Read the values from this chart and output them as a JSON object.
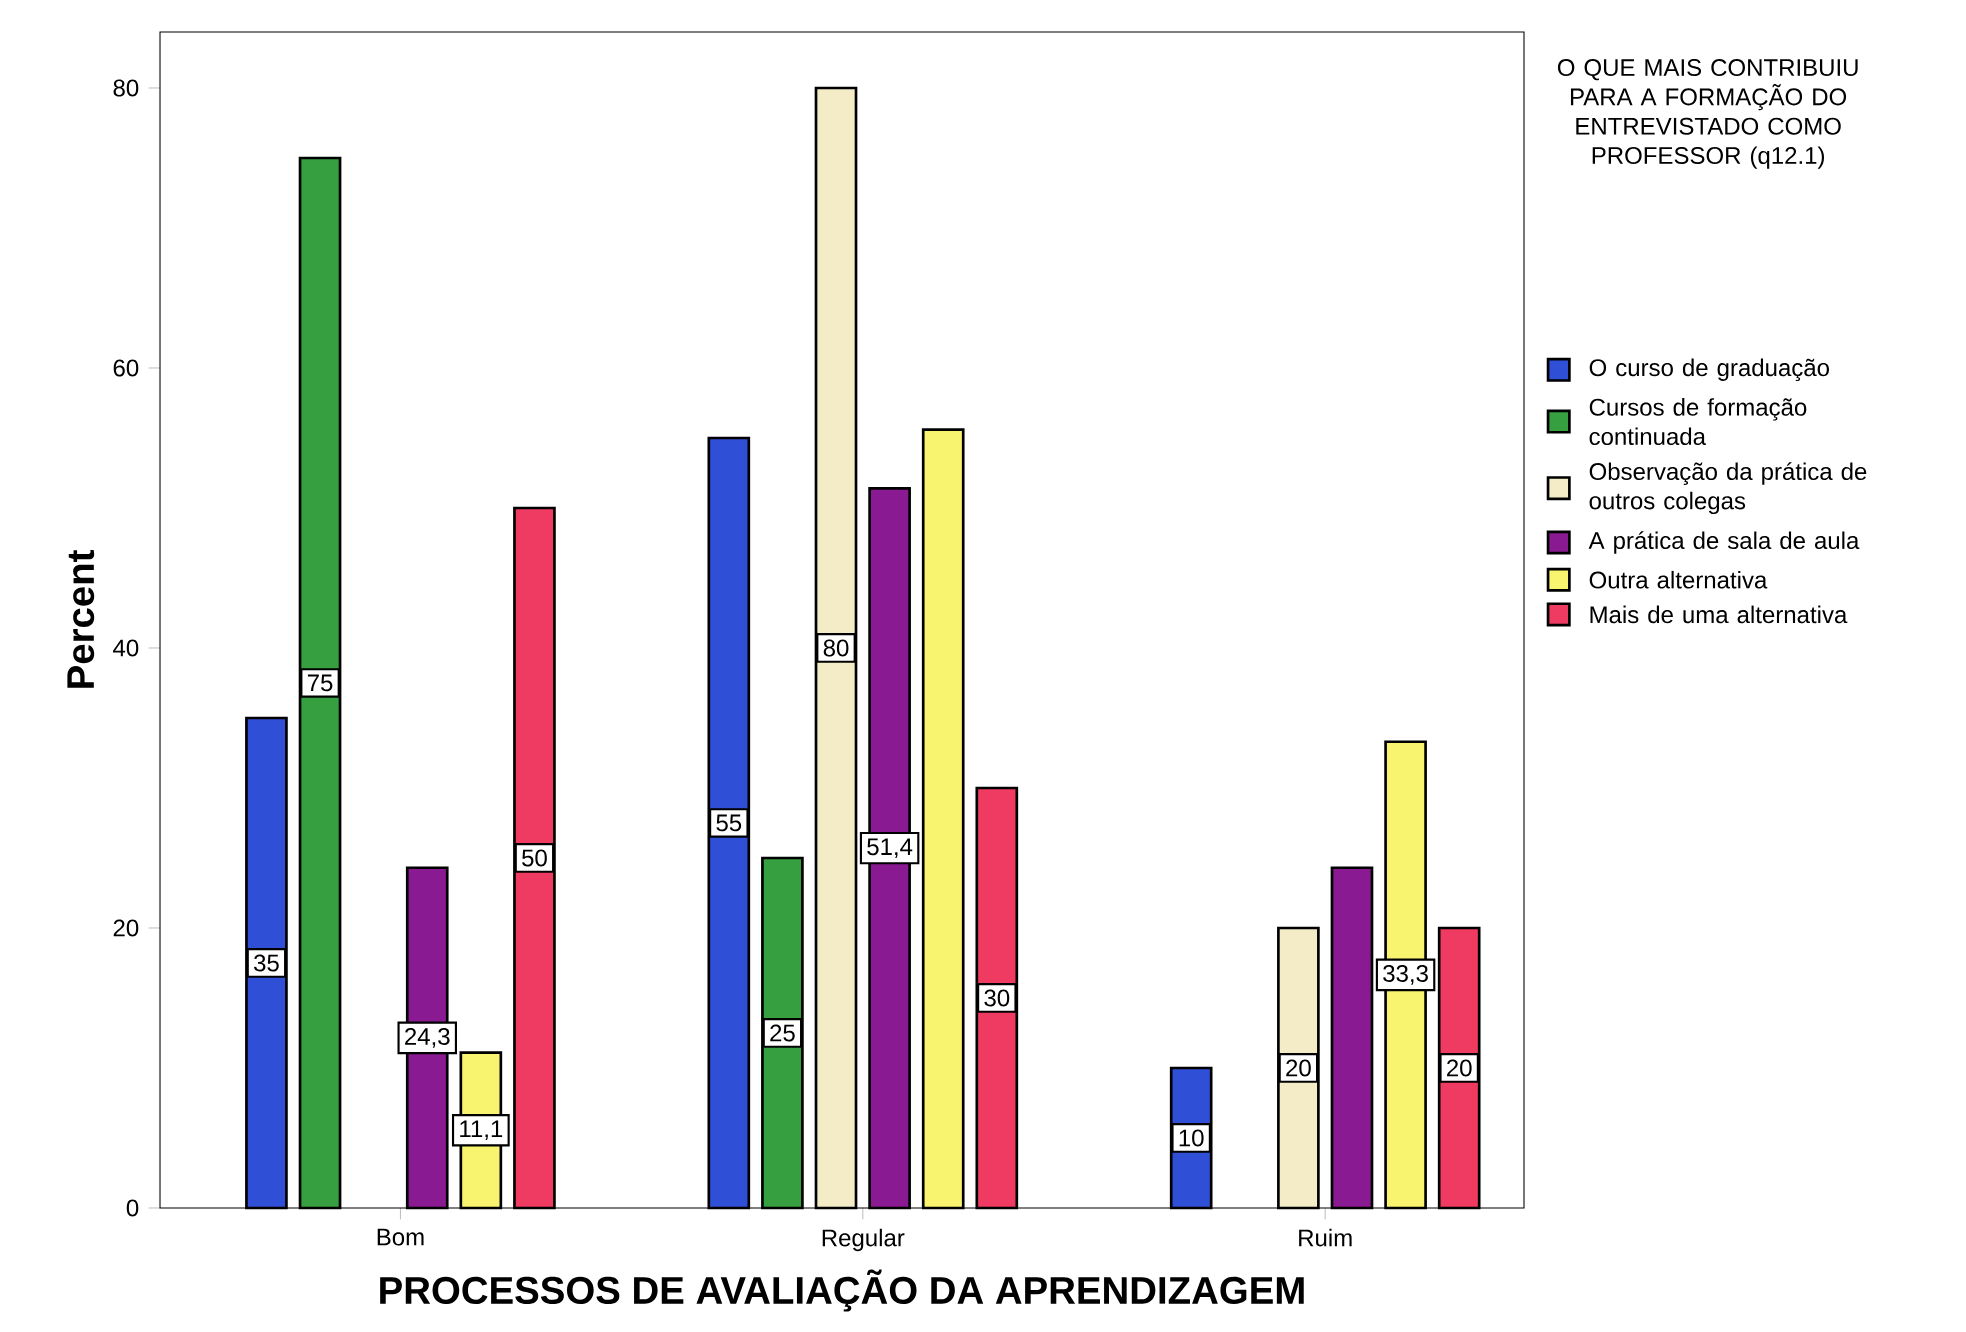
{
  "chart_data": {
    "type": "bar",
    "xlabel": "PROCESSOS DE AVALIAÇÃO DA APRENDIZAGEM",
    "ylabel": "Percent",
    "legend_title": "O QUE MAIS CONTRIBUIU PARA A FORMAÇÃO DO ENTREVISTADO COMO PROFESSOR (q12.1)",
    "categories": [
      "Bom",
      "Regular",
      "Ruim"
    ],
    "series": [
      {
        "name": "O curso de graduação",
        "color": "#2f4fd6",
        "values": [
          35,
          55,
          10
        ],
        "value_labels": [
          "35",
          "55",
          "10"
        ]
      },
      {
        "name": "Cursos de formação continuada",
        "color": "#36a040",
        "values": [
          75,
          25,
          null
        ],
        "value_labels": [
          "75",
          "25",
          null
        ]
      },
      {
        "name": "Observação da prática de outros colegas",
        "color": "#f3ecc6",
        "values": [
          null,
          80,
          20
        ],
        "value_labels": [
          null,
          "80",
          "20"
        ]
      },
      {
        "name": "A prática de sala de aula",
        "color": "#8a1a92",
        "values": [
          24.3,
          51.4,
          24.3
        ],
        "value_labels": [
          "24,3",
          "51,4",
          null
        ]
      },
      {
        "name": "Outra alternativa",
        "color": "#f8f470",
        "values": [
          11.1,
          55.6,
          33.3
        ],
        "value_labels": [
          "11,1",
          null,
          "33,3"
        ]
      },
      {
        "name": "Mais de uma alternativa",
        "color": "#ef3a62",
        "values": [
          50,
          30,
          20
        ],
        "value_labels": [
          "50",
          "30",
          "20"
        ]
      }
    ],
    "ylim": [
      0,
      84
    ],
    "yticks": [
      0,
      20,
      40,
      60,
      80
    ],
    "grid": false,
    "legend": "right"
  }
}
